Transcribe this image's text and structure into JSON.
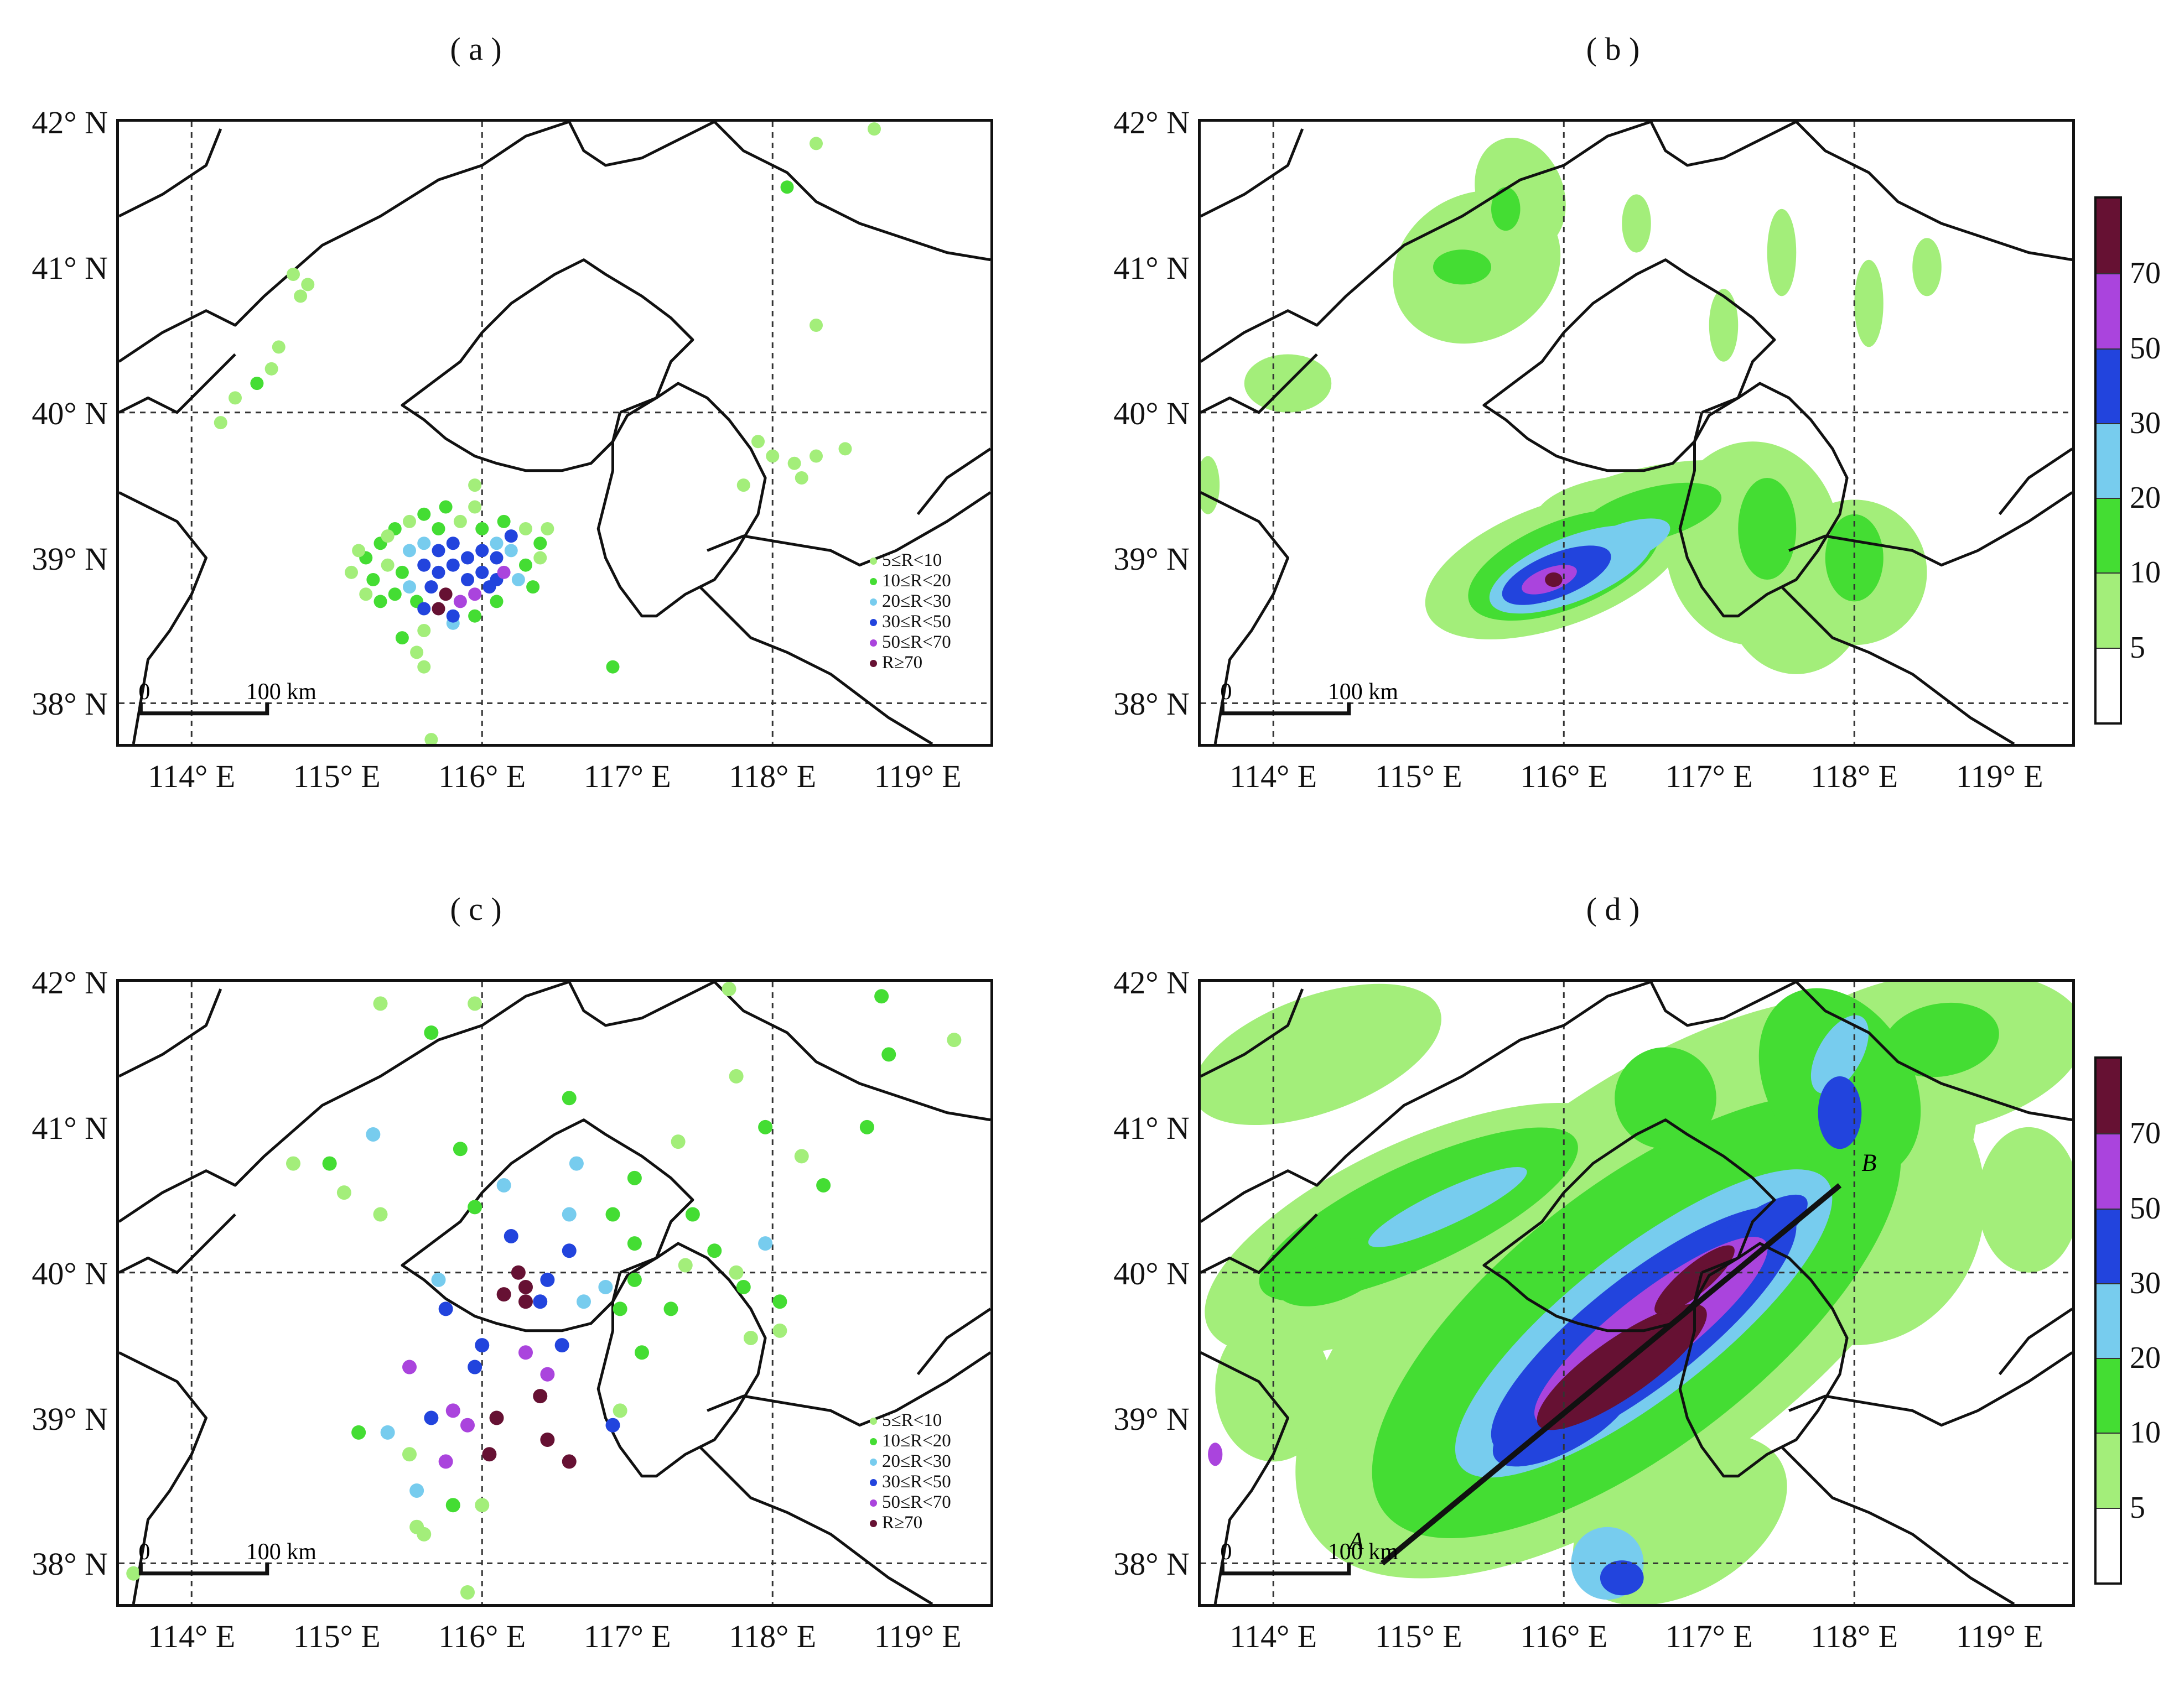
{
  "panels": [
    {
      "id": "a",
      "label": "( a )",
      "kind": "stations"
    },
    {
      "id": "b",
      "label": "( b )",
      "kind": "field"
    },
    {
      "id": "c",
      "label": "( c )",
      "kind": "stations"
    },
    {
      "id": "d",
      "label": "( d )",
      "kind": "field"
    }
  ],
  "axes": {
    "lat_labels": [
      "42° N",
      "41° N",
      "40° N",
      "39° N",
      "38° N"
    ],
    "lon_labels": [
      "114° E",
      "115° E",
      "116° E",
      "117° E",
      "118° E",
      "119° E"
    ]
  },
  "scalebar": {
    "start": "0",
    "end": "100 km"
  },
  "legend": {
    "items": [
      {
        "label": "5≤R<10",
        "color": "#a3ee7a"
      },
      {
        "label": "10≤R<20",
        "color": "#44dd33"
      },
      {
        "label": "20≤R<30",
        "color": "#77ccee"
      },
      {
        "label": "30≤R<50",
        "color": "#2244dd"
      },
      {
        "label": "50≤R<70",
        "color": "#aa44dd"
      },
      {
        "label": "R≥70",
        "color": "#661133"
      }
    ]
  },
  "colorbar": {
    "ticks": [
      "70",
      "50",
      "30",
      "20",
      "10",
      "5"
    ],
    "colors": [
      "#ffffff",
      "#a3ee7a",
      "#44dd33",
      "#77ccee",
      "#2244dd",
      "#aa44dd",
      "#661133"
    ]
  },
  "section_line": {
    "start_label": "A",
    "end_label": "B"
  }
}
